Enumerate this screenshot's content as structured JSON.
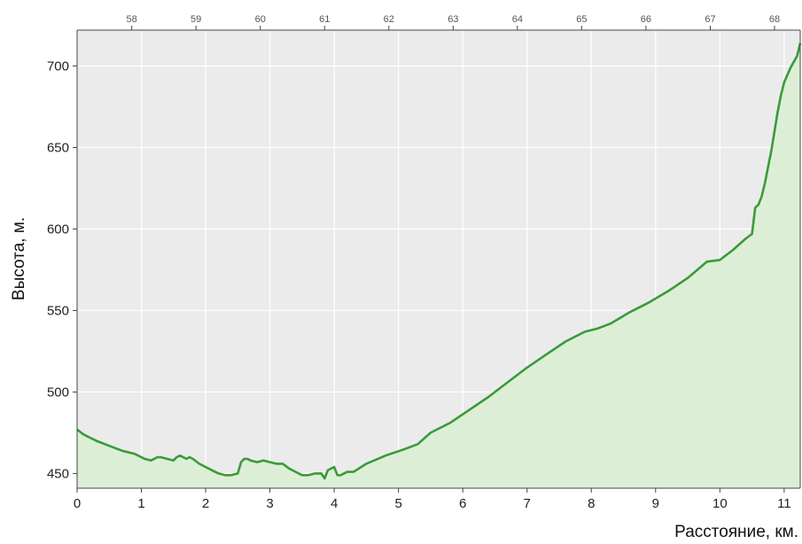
{
  "chart_data": {
    "type": "area",
    "xlabel": "Расстояние, км.",
    "ylabel": "Высота, м.",
    "xlim": [
      0,
      11.25
    ],
    "ylim": [
      441,
      722
    ],
    "grid": true,
    "x_ticks": [
      0,
      1,
      2,
      3,
      4,
      5,
      6,
      7,
      8,
      9,
      10,
      11
    ],
    "y_ticks": [
      450,
      500,
      550,
      600,
      650,
      700
    ],
    "top_ticks": {
      "labels": [
        "58",
        "59",
        "60",
        "61",
        "62",
        "63",
        "64",
        "65",
        "66",
        "67",
        "68"
      ],
      "at_x": [
        0.85,
        1.85,
        2.85,
        3.85,
        4.85,
        5.85,
        6.85,
        7.85,
        8.85,
        9.85,
        10.85
      ]
    },
    "colors": {
      "line": "#3a9a3a",
      "fill": "#dcefd6",
      "plot_bg": "#ebebeb",
      "grid": "#ffffff"
    },
    "series": [
      {
        "x": [
          0,
          0.1,
          0.2,
          0.3,
          0.5,
          0.7,
          0.9,
          1.05,
          1.15,
          1.25,
          1.3,
          1.4,
          1.5,
          1.55,
          1.6,
          1.7,
          1.75,
          1.8,
          1.9,
          2.0,
          2.1,
          2.2,
          2.3,
          2.4,
          2.5,
          2.55,
          2.6,
          2.65,
          2.7,
          2.8,
          2.9,
          3.0,
          3.1,
          3.2,
          3.3,
          3.4,
          3.5,
          3.6,
          3.7,
          3.8,
          3.85,
          3.9,
          3.95,
          4.0,
          4.05,
          4.1,
          4.2,
          4.3,
          4.5,
          4.8,
          5.1,
          5.3,
          5.5,
          5.8,
          6.1,
          6.4,
          6.7,
          7.0,
          7.3,
          7.6,
          7.9,
          8.1,
          8.3,
          8.6,
          8.9,
          9.2,
          9.5,
          9.8,
          10.0,
          10.2,
          10.4,
          10.5,
          10.55,
          10.6,
          10.65,
          10.7,
          10.75,
          10.8,
          10.85,
          10.9,
          10.95,
          11.0,
          11.1,
          11.2,
          11.25
        ],
        "y": [
          477,
          474,
          472,
          470,
          467,
          464,
          462,
          459,
          458,
          460,
          460,
          459,
          458,
          460,
          461,
          459,
          460,
          459,
          456,
          454,
          452,
          450,
          449,
          449,
          450,
          457,
          459,
          459,
          458,
          457,
          458,
          457,
          456,
          456,
          453,
          451,
          449,
          449,
          450,
          450,
          447,
          452,
          453,
          454,
          449,
          449,
          451,
          451,
          456,
          461,
          465,
          468,
          475,
          481,
          489,
          497,
          506,
          515,
          523,
          531,
          537,
          539,
          542,
          549,
          555,
          562,
          570,
          580,
          581,
          587,
          594,
          597,
          613,
          615,
          620,
          628,
          638,
          648,
          660,
          672,
          682,
          690,
          699,
          706,
          714
        ]
      }
    ]
  }
}
